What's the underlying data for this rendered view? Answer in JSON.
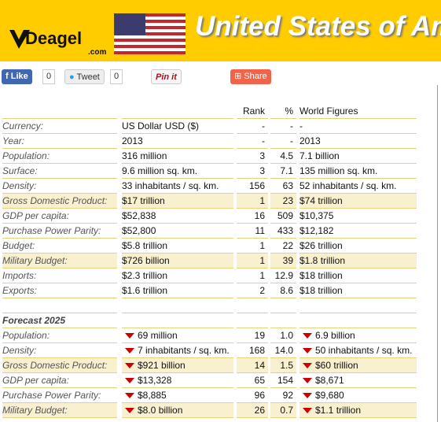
{
  "header": {
    "logo": "Deagel",
    "logo_sub": ".com",
    "title": "United States of America"
  },
  "social": {
    "like": "Like",
    "like_count": "0",
    "tweet": "Tweet",
    "tweet_count": "0",
    "pin": "Pin it",
    "share": "Share"
  },
  "table": {
    "columns": [
      "Rank",
      "%",
      "World Figures"
    ],
    "sections": [
      {
        "rows": [
          {
            "label": "Currency:",
            "value": "US Dollar USD ($)",
            "rank": "-",
            "percent": "-",
            "world": "-"
          },
          {
            "label": "Year:",
            "value": "2013",
            "rank": "-",
            "percent": "-",
            "world": "2013"
          },
          {
            "label": "Population:",
            "value": "316 million",
            "rank": "3",
            "percent": "4.5",
            "world": "7.1 billion"
          },
          {
            "label": "Surface:",
            "value": "9.6 million sq. km.",
            "rank": "3",
            "percent": "7.1",
            "world": "135 million sq. km."
          },
          {
            "label": "Density:",
            "value": "33 inhabitants / sq. km.",
            "rank": "156",
            "percent": "63",
            "world": "52 inhabitants / sq. km."
          },
          {
            "label": "Gross Domestic Product:",
            "value": "$17 trillion",
            "rank": "1",
            "percent": "23",
            "world": "$74 trillion",
            "highlight": true
          },
          {
            "label": "GDP per capita:",
            "value": "$52,838",
            "rank": "16",
            "percent": "509",
            "world": "$10,375"
          },
          {
            "label": "Purchase Power Parity:",
            "value": "$52,800",
            "rank": "11",
            "percent": "433",
            "world": "$12,182"
          },
          {
            "label": "Budget:",
            "value": "$5.8 trillion",
            "rank": "1",
            "percent": "22",
            "world": "$26 trillion"
          },
          {
            "label": "Military Budget:",
            "value": "$726 billion",
            "rank": "1",
            "percent": "39",
            "world": "$1.8 trillion",
            "highlight": true
          },
          {
            "label": "Imports:",
            "value": "$2.3 trillion",
            "rank": "1",
            "percent": "12.9",
            "world": "$18 trillion"
          },
          {
            "label": "Exports:",
            "value": "$1.6 trillion",
            "rank": "2",
            "percent": "8.6",
            "world": "$18 trillion"
          }
        ]
      },
      {
        "title": "Forecast 2025",
        "rows": [
          {
            "label": "Population:",
            "value": "69 million",
            "rank": "19",
            "percent": "1.0",
            "world": "6.9 billion"
          },
          {
            "label": "Density:",
            "value": "7 inhabitants / sq. km.",
            "rank": "168",
            "percent": "14.0",
            "world": "50 inhabitants / sq. km."
          },
          {
            "label": "Gross Domestic Product:",
            "value": "$921 billion",
            "rank": "14",
            "percent": "1.5",
            "world": "$60 trillion",
            "highlight": true
          },
          {
            "label": "GDP per capita:",
            "value": "$13,328",
            "rank": "65",
            "percent": "154",
            "world": "$8,671"
          },
          {
            "label": "Purchase Power Parity:",
            "value": "$8,885",
            "rank": "96",
            "percent": "92",
            "world": "$9,680"
          },
          {
            "label": "Military Budget:",
            "value": "$8.0 billion",
            "rank": "26",
            "percent": "0.7",
            "world": "$1.1 trillion",
            "highlight": true
          }
        ]
      }
    ]
  }
}
